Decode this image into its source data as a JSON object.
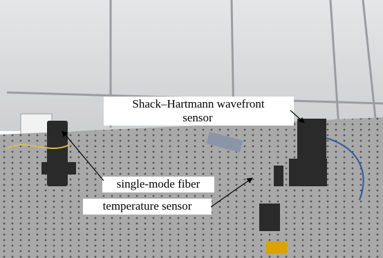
{
  "annotations": [
    {
      "lines": [
        "Shack–Hartmann wavefront",
        "sensor"
      ]
    },
    {
      "lines": [
        "single-mode fiber"
      ]
    },
    {
      "lines": [
        "temperature sensor"
      ]
    }
  ]
}
